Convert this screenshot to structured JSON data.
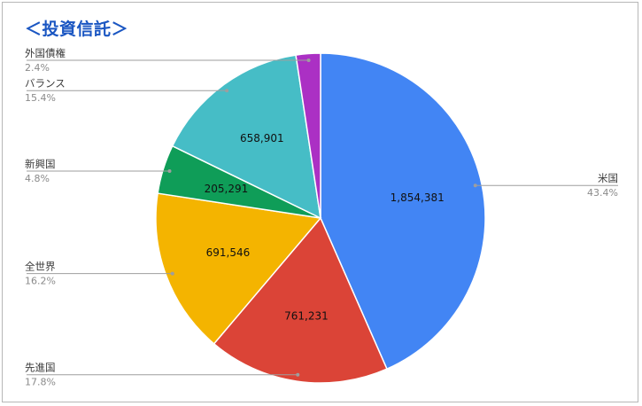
{
  "chart_data": {
    "type": "pie",
    "title": "＜投資信託＞",
    "start_angle_deg": 0,
    "direction": "clockwise",
    "slices": [
      {
        "label": "米国",
        "value": 1854381,
        "percent": "43.4%",
        "color": "#4285f4",
        "show_value": true,
        "label_side": "right"
      },
      {
        "label": "先進国",
        "value": 761231,
        "percent": "17.8%",
        "color": "#db4437",
        "show_value": true,
        "label_side": "left"
      },
      {
        "label": "全世界",
        "value": 691546,
        "percent": "16.2%",
        "color": "#f4b400",
        "show_value": true,
        "label_side": "left"
      },
      {
        "label": "新興国",
        "value": 205291,
        "percent": "4.8%",
        "color": "#0f9d58",
        "show_value": true,
        "label_side": "left"
      },
      {
        "label": "バランス",
        "value": 658901,
        "percent": "15.4%",
        "color": "#46bdc6",
        "show_value": true,
        "label_side": "left"
      },
      {
        "label": "外国債権",
        "value": null,
        "percent": "2.4%",
        "color": "#ab30c4",
        "show_value": false,
        "label_side": "left"
      }
    ]
  }
}
